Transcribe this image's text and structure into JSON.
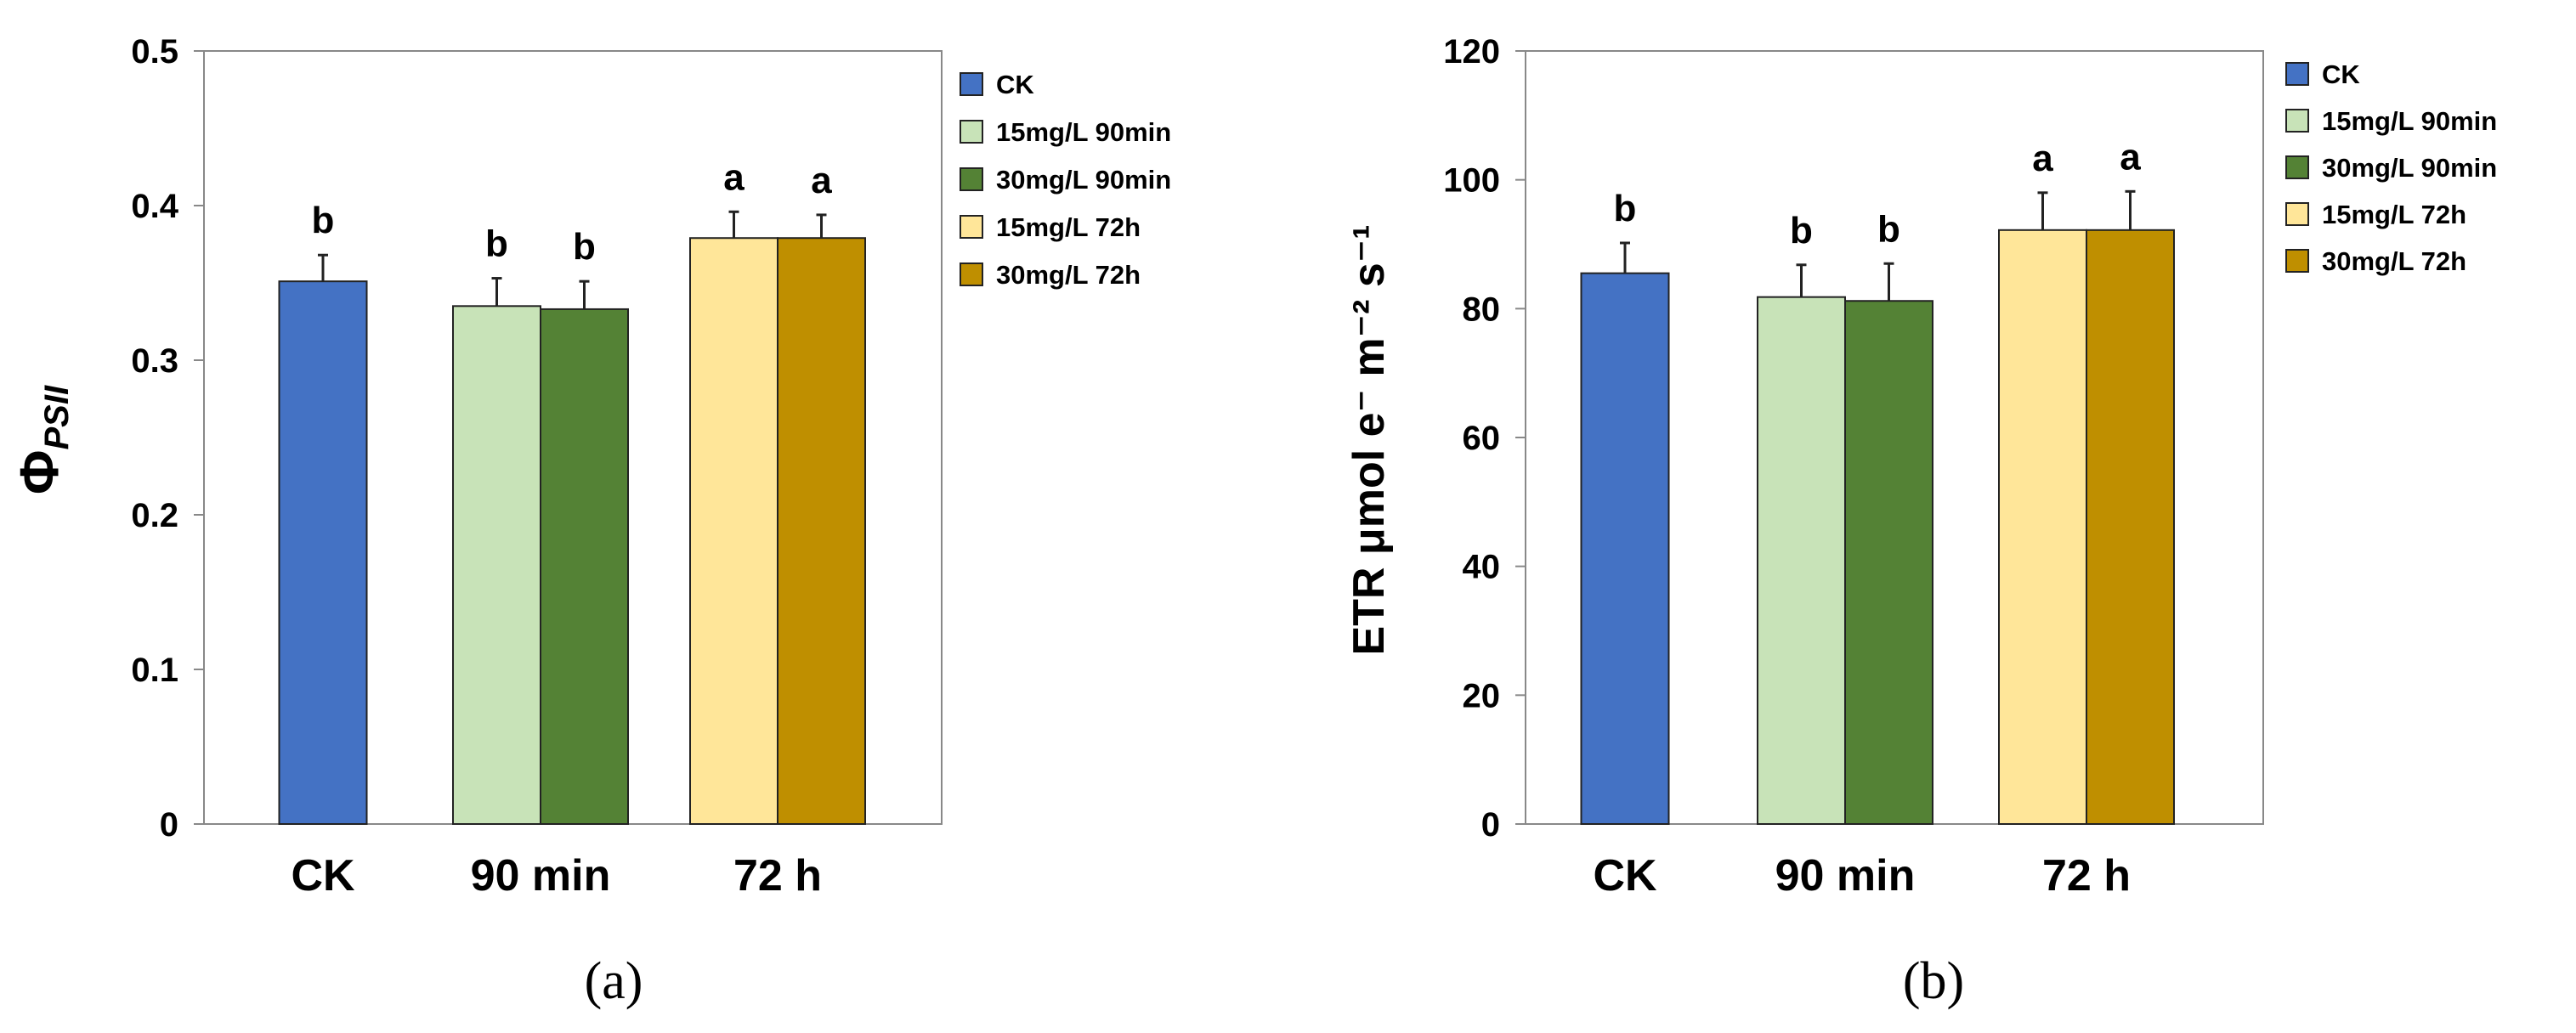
{
  "colors": {
    "CK": "#4472C4",
    "15mg/L 90min": "#C8E3B8",
    "30mg/L 90min": "#548235",
    "15mg/L 72h": "#FFE699",
    "30mg/L 72h": "#BF8F00"
  },
  "chart_data": [
    {
      "type": "bar",
      "panel_label": "(a)",
      "ylabel": "Φ",
      "ylabel_subscript": "PSII",
      "ylim": [
        0,
        0.5
      ],
      "yticks": [
        0,
        0.1,
        0.2,
        0.3,
        0.4,
        0.5
      ],
      "ytick_labels": [
        "0",
        "0.1",
        "0.2",
        "0.3",
        "0.4",
        "0.5"
      ],
      "categories": [
        "CK",
        "90 min",
        "72 h"
      ],
      "legend": [
        "CK",
        "15mg/L 90min",
        "30mg/L 90min",
        "15mg/L 72h",
        "30mg/L 72h"
      ],
      "legend_position": "right",
      "bars": [
        {
          "series": "CK",
          "category": "CK",
          "value": 0.351,
          "error": 0.017,
          "letter": "b"
        },
        {
          "series": "15mg/L 90min",
          "category": "90 min",
          "value": 0.335,
          "error": 0.018,
          "letter": "b"
        },
        {
          "series": "30mg/L 90min",
          "category": "90 min",
          "value": 0.333,
          "error": 0.018,
          "letter": "b"
        },
        {
          "series": "15mg/L 72h",
          "category": "72 h",
          "value": 0.379,
          "error": 0.017,
          "letter": "a"
        },
        {
          "series": "30mg/L 72h",
          "category": "72 h",
          "value": 0.379,
          "error": 0.015,
          "letter": "a"
        }
      ]
    },
    {
      "type": "bar",
      "panel_label": "(b)",
      "ylabel": "ETR μmol e⁻ m⁻² s⁻¹",
      "ylim": [
        0,
        120
      ],
      "yticks": [
        0,
        20,
        40,
        60,
        80,
        100,
        120
      ],
      "ytick_labels": [
        "0",
        "20",
        "40",
        "60",
        "80",
        "100",
        "120"
      ],
      "categories": [
        "CK",
        "90 min",
        "72 h"
      ],
      "legend": [
        "CK",
        "15mg/L 90min",
        "30mg/L 90min",
        "15mg/L 72h",
        "30mg/L 72h"
      ],
      "legend_position": "right",
      "bars": [
        {
          "series": "CK",
          "category": "CK",
          "value": 85.5,
          "error": 4.7,
          "letter": "b"
        },
        {
          "series": "15mg/L 90min",
          "category": "90 min",
          "value": 81.8,
          "error": 5.0,
          "letter": "b"
        },
        {
          "series": "30mg/L 90min",
          "category": "90 min",
          "value": 81.2,
          "error": 5.8,
          "letter": "b"
        },
        {
          "series": "15mg/L 72h",
          "category": "72 h",
          "value": 92.2,
          "error": 5.8,
          "letter": "a"
        },
        {
          "series": "30mg/L 72h",
          "category": "72 h",
          "value": 92.2,
          "error": 6.0,
          "letter": "a"
        }
      ]
    }
  ]
}
